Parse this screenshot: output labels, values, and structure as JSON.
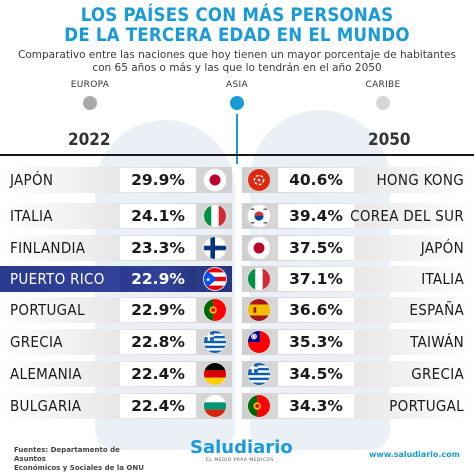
{
  "title_line1": "LOS PAÍSES CON MÁS PERSONAS",
  "title_line2": "DE LA TERCERA EDAD EN EL MUNDO",
  "subtitle_line1": "Comparativo entre las naciones que hoy tienen un mayor porcentaje de habitantes",
  "subtitle_line2": "con 65 años o más y las que lo tendrán en el año 2050",
  "regions": [
    {
      "label": "EUROPA",
      "color": "#a9a9a9"
    },
    {
      "label": "ASIA",
      "color": "#1a9bd7"
    },
    {
      "label": "CARIBE",
      "color": "#d7d7d7"
    }
  ],
  "year_left": "2022",
  "year_right": "2050",
  "left_rows": [
    {
      "country": "JAPÓN",
      "value": "29.9%",
      "flag": "japan-flag-icon",
      "region": "ASIA"
    },
    {
      "country": "ITALIA",
      "value": "24.1%",
      "flag": "italy-flag-icon",
      "region": "EUROPA"
    },
    {
      "country": "FINLANDIA",
      "value": "23.3%",
      "flag": "finland-flag-icon",
      "region": "EUROPA"
    },
    {
      "country": "PUERTO RICO",
      "value": "22.9%",
      "flag": "puerto-rico-flag-icon",
      "region": "CARIBE"
    },
    {
      "country": "PORTUGAL",
      "value": "22.9%",
      "flag": "portugal-flag-icon",
      "region": "EUROPA"
    },
    {
      "country": "GRECIA",
      "value": "22.8%",
      "flag": "greece-flag-icon",
      "region": "EUROPA"
    },
    {
      "country": "ALEMANIA",
      "value": "22.4%",
      "flag": "germany-flag-icon",
      "region": "EUROPA"
    },
    {
      "country": "BULGARIA",
      "value": "22.4%",
      "flag": "bulgaria-flag-icon",
      "region": "EUROPA"
    }
  ],
  "right_rows": [
    {
      "country": "HONG KONG",
      "value": "40.6%",
      "flag": "hong-kong-flag-icon",
      "region": "ASIA"
    },
    {
      "country": "COREA DEL SUR",
      "value": "39.4%",
      "flag": "south-korea-flag-icon",
      "region": "ASIA"
    },
    {
      "country": "JAPÓN",
      "value": "37.5%",
      "flag": "japan-flag-icon",
      "region": "ASIA"
    },
    {
      "country": "ITALIA",
      "value": "37.1%",
      "flag": "italy-flag-icon",
      "region": "EUROPA"
    },
    {
      "country": "ESPAÑA",
      "value": "36.6%",
      "flag": "spain-flag-icon",
      "region": "EUROPA"
    },
    {
      "country": "TAIWÁN",
      "value": "35.3%",
      "flag": "taiwan-flag-icon",
      "region": "ASIA"
    },
    {
      "country": "GRECIA",
      "value": "34.5%",
      "flag": "greece-flag-icon",
      "region": "EUROPA"
    },
    {
      "country": "PORTUGAL",
      "value": "34.3%",
      "flag": "portugal-flag-icon",
      "region": "EUROPA"
    }
  ],
  "source_line1": "Fuentes: Departamento de Asuntos",
  "source_line2": "Económicos y Sociales de la ONU",
  "logo": "Saludiario",
  "logo_tagline": "EL MEDIO PARA MEDICOS",
  "website": "www.saludiario.com",
  "colors": {
    "accent_blue": "#1a9bd7",
    "highlight_navy": "#2b3a8f"
  }
}
